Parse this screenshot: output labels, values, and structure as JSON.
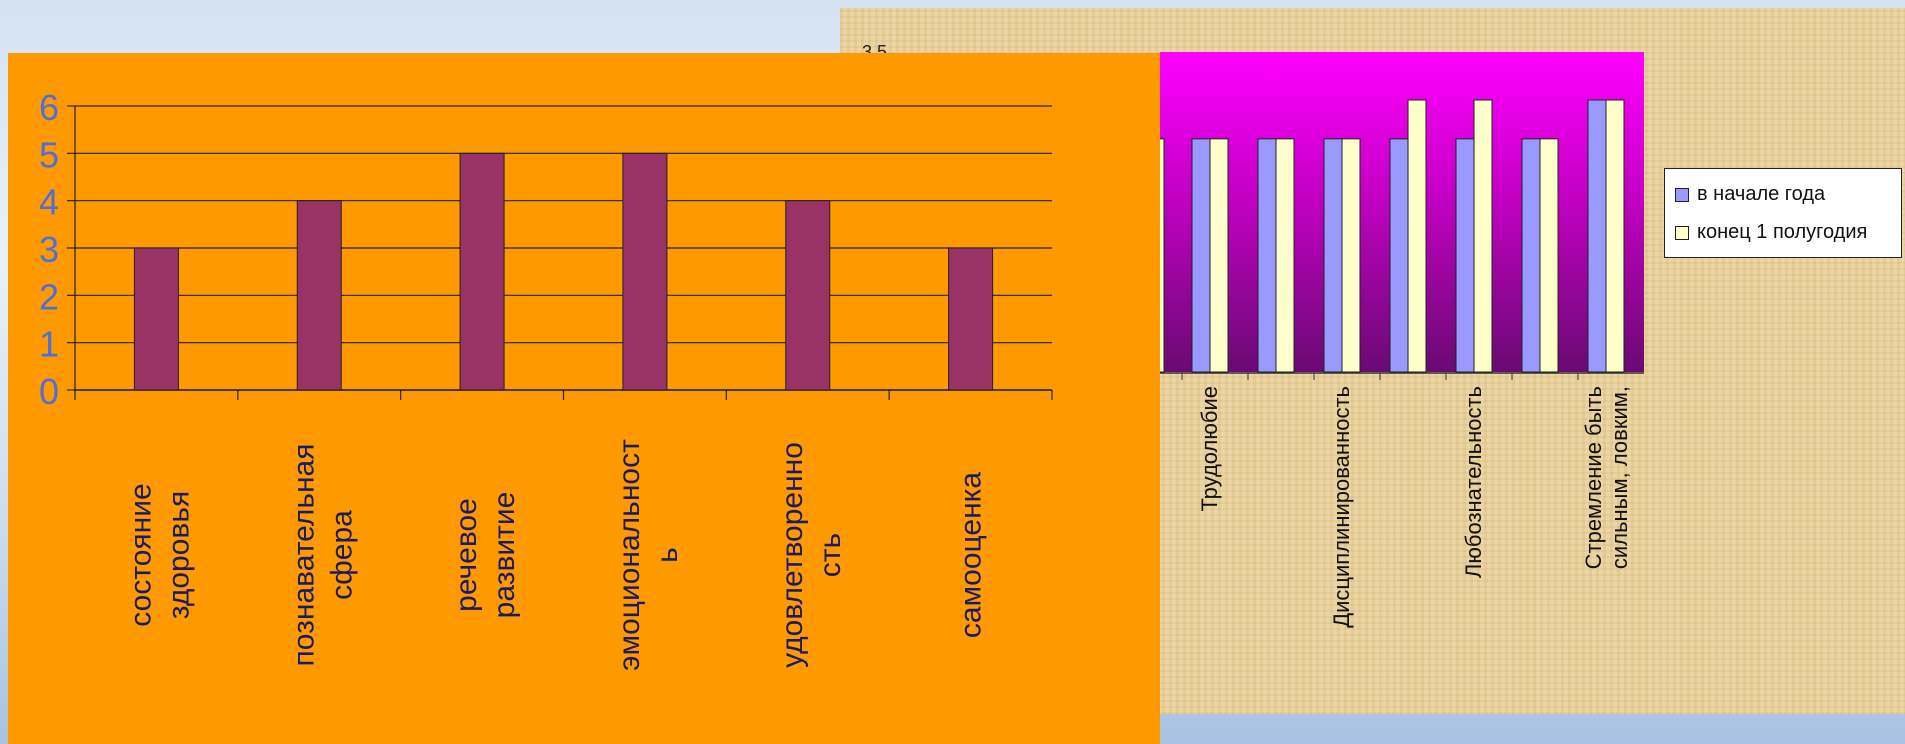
{
  "chart_data": [
    {
      "type": "bar",
      "categories": [
        "состояние здоровья",
        "познавательная сфера",
        "речевое развитие",
        "эмоциональност ь",
        "удовлетворенно сть",
        "самооценка"
      ],
      "series": [
        {
          "values": [
            3,
            4,
            5,
            5,
            4,
            3
          ]
        }
      ],
      "ylim": [
        0,
        6
      ],
      "yticks": [
        0,
        1,
        2,
        3,
        4,
        5,
        6
      ],
      "grid": true,
      "colors": {
        "bar": "#993366",
        "background": "#ff9900",
        "tick_label": "#4f6fd6",
        "category_label": "#1a1a66"
      }
    },
    {
      "type": "bar",
      "partial": true,
      "categories": [
        "",
        "Трудолюбие",
        "",
        "Дисциплинированность",
        "",
        "Любознательность",
        "",
        "Стремление быть сильным, ловким,"
      ],
      "series": [
        {
          "name": "в начале года",
          "values": [
            3,
            3,
            3,
            3,
            3,
            3,
            3,
            3.5
          ]
        },
        {
          "name": "конец 1 полугодия",
          "values": [
            3,
            3,
            3,
            3,
            3.5,
            3.5,
            3,
            3.5
          ]
        }
      ],
      "ylim": [
        0,
        3.5
      ],
      "visible_top_tick": "3,5",
      "legend": "right",
      "colors": {
        "series1": "#9999ff",
        "series2": "#ffffcc",
        "plot_top": "#ff00ff",
        "plot_bottom": "#6a0a73"
      }
    }
  ]
}
